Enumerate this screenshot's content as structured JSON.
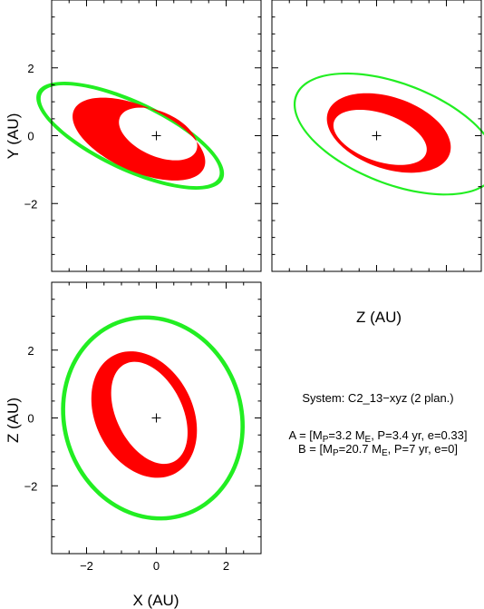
{
  "figure": {
    "system": "System: C2_13−xyz (2 plan.)",
    "planets": [
      {
        "prefix": "A = [M",
        "mass_sub": "P",
        "mass_eq": "=3.2 M",
        "unit_sub": "E",
        "rest": ", P=3.4 yr, e=0.33]"
      },
      {
        "prefix": "B = [M",
        "mass_sub": "P",
        "mass_eq": "=20.7 M",
        "unit_sub": "E",
        "rest": ", P=7 yr, e=0]"
      }
    ],
    "colors": {
      "inner_orbit": "#ff0000",
      "outer_orbit": "#22ee22",
      "axes": "#000000"
    }
  },
  "chart_data": [
    {
      "type": "orbit_plot",
      "panel": "xy",
      "xlabel": "",
      "ylabel": "Y (AU)",
      "xlim": [
        -3,
        3
      ],
      "ylim": [
        -4,
        4
      ],
      "xticks": [],
      "yticks": [
        -2,
        0,
        2
      ],
      "center_marker": [
        0,
        0
      ],
      "series": [
        {
          "color": "#22ee22",
          "fill": false,
          "rings": [
            {
              "cx": -0.75,
              "cy": 0.0,
              "a": 2.95,
              "b": 1.03,
              "angle": -26
            },
            {
              "cx": -0.75,
              "cy": 0.0,
              "a": 2.82,
              "b": 0.92,
              "angle": -26
            }
          ]
        },
        {
          "color": "#ff0000",
          "fill": true,
          "rings": [
            {
              "cx": -0.5,
              "cy": -0.1,
              "a": 2.05,
              "b": 0.95,
              "angle": -25
            },
            {
              "cx": 0.05,
              "cy": 0.05,
              "a": 1.2,
              "b": 0.65,
              "angle": -25
            }
          ]
        }
      ]
    },
    {
      "type": "orbit_plot",
      "panel": "zy",
      "xlabel": "Z (AU)",
      "ylabel": "",
      "xlim": [
        -3,
        3
      ],
      "ylim": [
        -4,
        4
      ],
      "xticks": [],
      "yticks": [],
      "center_marker": [
        0,
        0
      ],
      "series": [
        {
          "color": "#22ee22",
          "fill": false,
          "rings": [
            {
              "cx": 0.55,
              "cy": 0.05,
              "a": 3.1,
              "b": 1.5,
              "angle": -22
            },
            {
              "cx": 0.55,
              "cy": 0.05,
              "a": 3.04,
              "b": 1.44,
              "angle": -22
            }
          ]
        },
        {
          "color": "#ff0000",
          "fill": true,
          "rings": [
            {
              "cx": 0.35,
              "cy": 0.08,
              "a": 1.85,
              "b": 1.05,
              "angle": -20
            },
            {
              "cx": 0.1,
              "cy": -0.05,
              "a": 1.4,
              "b": 0.7,
              "angle": -20
            }
          ]
        }
      ]
    },
    {
      "type": "orbit_plot",
      "panel": "xz",
      "xlabel": "X (AU)",
      "ylabel": "Z (AU)",
      "xlim": [
        -3,
        3
      ],
      "ylim": [
        -4,
        4
      ],
      "xticks": [
        -2,
        0,
        2
      ],
      "yticks": [
        -2,
        0,
        2
      ],
      "center_marker": [
        0,
        0
      ],
      "series": [
        {
          "color": "#22ee22",
          "fill": false,
          "rings": [
            {
              "cx": -0.1,
              "cy": 0.0,
              "a": 3.05,
              "b": 2.6,
              "angle": 105
            },
            {
              "cx": -0.1,
              "cy": 0.0,
              "a": 2.93,
              "b": 2.48,
              "angle": 105
            }
          ]
        },
        {
          "color": "#ff0000",
          "fill": true,
          "rings": [
            {
              "cx": -0.35,
              "cy": 0.1,
              "a": 1.95,
              "b": 1.4,
              "angle": 115
            },
            {
              "cx": -0.2,
              "cy": 0.15,
              "a": 1.6,
              "b": 0.95,
              "angle": 115
            }
          ]
        }
      ]
    }
  ]
}
